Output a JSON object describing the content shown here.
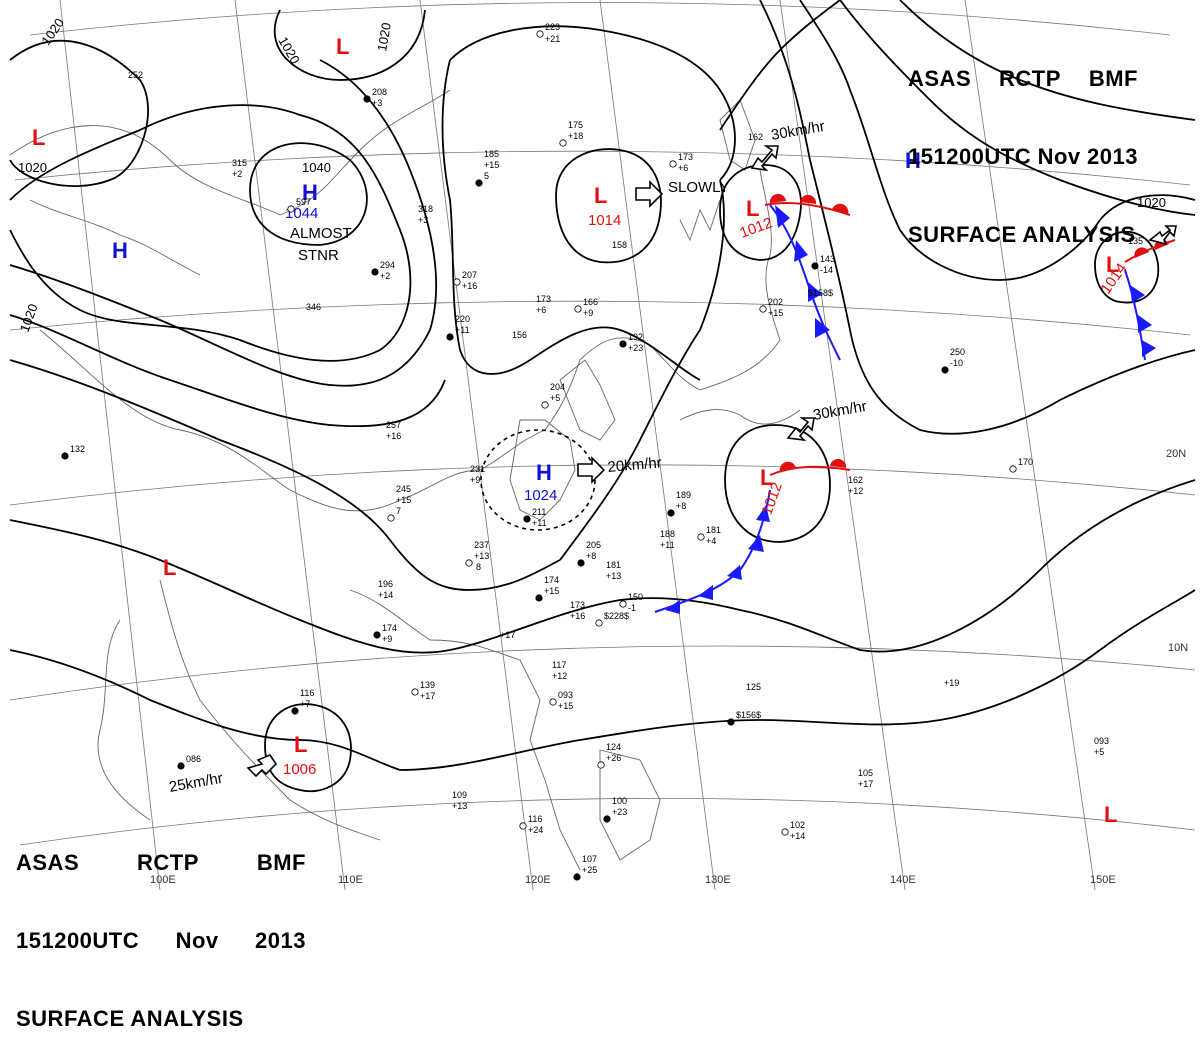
{
  "header": {
    "line1": [
      "ASAS",
      "RCTP",
      "BMF"
    ],
    "line2": [
      "151200UTC",
      "Nov",
      "2013"
    ],
    "line3": "SURFACE ANALYSIS"
  },
  "colors": {
    "high": "#1010d0",
    "low": "#e01010",
    "isobar": "#000000",
    "grid": "#555555",
    "coast": "#666666"
  },
  "isobar_labels": [
    "1020",
    "1020",
    "1020",
    "1020",
    "1040",
    "1020"
  ],
  "systems": [
    {
      "type": "L",
      "pressure": ""
    },
    {
      "type": "L",
      "pressure": ""
    },
    {
      "type": "H",
      "pressure": "1044"
    },
    {
      "type": "H",
      "pressure": ""
    },
    {
      "type": "L",
      "pressure": "1014"
    },
    {
      "type": "L",
      "pressure": "1012"
    },
    {
      "type": "H",
      "pressure": ""
    },
    {
      "type": "L",
      "pressure": "1014"
    },
    {
      "type": "H",
      "pressure": "1024"
    },
    {
      "type": "L",
      "pressure": "1012"
    },
    {
      "type": "L",
      "pressure": ""
    },
    {
      "type": "L",
      "pressure": "1006"
    },
    {
      "type": "L",
      "pressure": ""
    }
  ],
  "motions": [
    "30km/hr",
    "SLOWLY",
    "ALMOST",
    "STNR",
    "30km/hr",
    "20km/hr",
    "25km/hr"
  ],
  "lat_labels": [
    "20N",
    "10N"
  ],
  "lon_labels": [
    "100E",
    "110E",
    "120E",
    "130E",
    "140E",
    "150E"
  ],
  "stations": [
    "223",
    "+21",
    "252",
    "208",
    "+3",
    "175",
    "+18",
    "185",
    "+15",
    "5",
    "315",
    "+2",
    "597",
    "318",
    "+3",
    "294",
    "+2",
    "346",
    "207",
    "+16",
    "220",
    "+11",
    "173",
    "+6",
    "166",
    "+9",
    "156",
    "192",
    "+23",
    "158",
    "173",
    "+6",
    "162",
    "143",
    "-14",
    "$158$",
    "202",
    "+15",
    "250",
    "-10",
    "135",
    "204",
    "+5",
    "257",
    "+16",
    "132",
    "245",
    "+15",
    "7",
    "231",
    "+9",
    "211",
    "+11",
    "237",
    "+13",
    "8",
    "189",
    "+8",
    "188",
    "+11",
    "181",
    "+4",
    "205",
    "+8",
    "181",
    "+13",
    "150",
    "-1",
    "174",
    "+15",
    "173",
    "+16",
    "$228$",
    "196",
    "+14",
    "174",
    "+9",
    "+17",
    "139",
    "+17",
    "116",
    "+7",
    "117",
    "+12",
    "093",
    "+15",
    "125",
    "$156$",
    "+19",
    "124",
    "+26",
    "093",
    "+5",
    "086",
    "109",
    "+13",
    "116",
    "+24",
    "100",
    "+23",
    "105",
    "+17",
    "102",
    "+14",
    "107",
    "+25",
    "162",
    "+12",
    "170"
  ]
}
